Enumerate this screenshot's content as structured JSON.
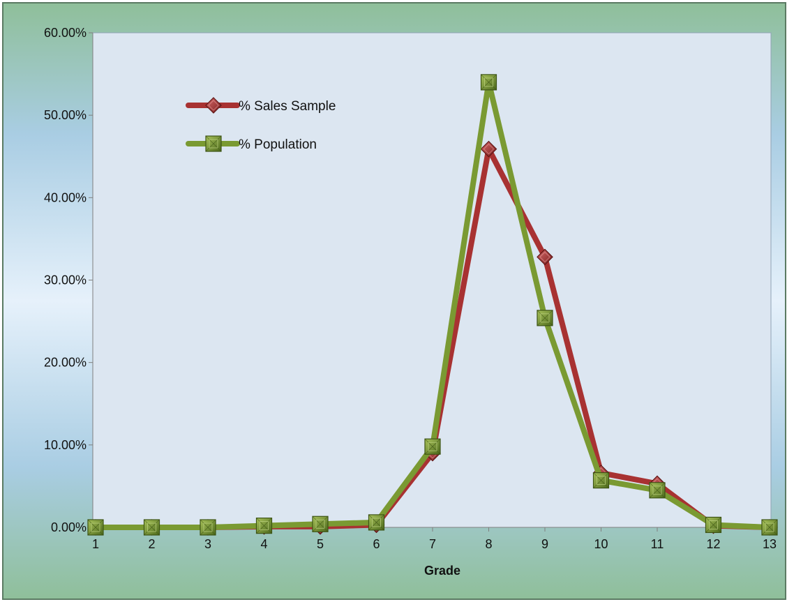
{
  "chart_data": {
    "type": "line",
    "title": "",
    "xlabel": "Grade",
    "ylabel": "",
    "x": [
      1,
      2,
      3,
      4,
      5,
      6,
      7,
      8,
      9,
      10,
      11,
      12,
      13
    ],
    "x_tick_labels": [
      "1",
      "2",
      "3",
      "4",
      "5",
      "6",
      "7",
      "8",
      "9",
      "10",
      "11",
      "12",
      "13"
    ],
    "y_tick_labels": [
      "0.00%",
      "10.00%",
      "20.00%",
      "30.00%",
      "40.00%",
      "50.00%",
      "60.00%"
    ],
    "ylim": [
      0,
      60
    ],
    "y_unit": "%",
    "grid": false,
    "legend_position": "top-left",
    "series": [
      {
        "name": "% Sales Sample",
        "color": "#a83232",
        "marker": "diamond",
        "values": [
          0.0,
          0.0,
          0.0,
          0.1,
          0.1,
          0.3,
          9.0,
          45.9,
          32.8,
          6.6,
          5.3,
          0.2,
          0.0
        ]
      },
      {
        "name": "% Population",
        "color": "#7a9a32",
        "marker": "square",
        "values": [
          0.0,
          0.0,
          0.0,
          0.2,
          0.4,
          0.6,
          9.8,
          54.0,
          25.4,
          5.7,
          4.5,
          0.3,
          0.0
        ]
      }
    ]
  }
}
